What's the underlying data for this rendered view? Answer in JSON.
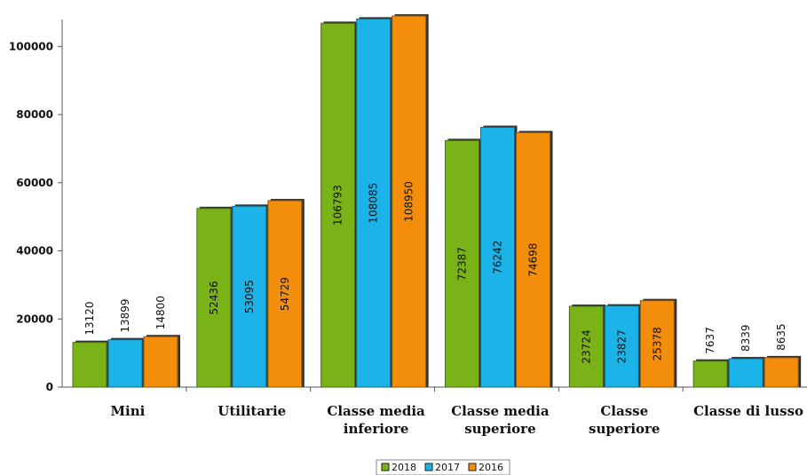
{
  "chart_data": {
    "type": "bar",
    "categories": [
      "Mini",
      "Utilitarie",
      "Classe media inferiore",
      "Classe media superiore",
      "Classe superiore",
      "Classe di lusso"
    ],
    "category_lines": [
      [
        "Mini"
      ],
      [
        "Utilitarie"
      ],
      [
        "Classe media",
        "inferiore"
      ],
      [
        "Classe media",
        "superiore"
      ],
      [
        "Classe",
        "superiore"
      ],
      [
        "Classe di lusso"
      ]
    ],
    "series": [
      {
        "name": "2018",
        "color": "#7ab317",
        "values": [
          13120,
          52436,
          106793,
          72387,
          23724,
          7637
        ]
      },
      {
        "name": "2017",
        "color": "#1cb3e8",
        "values": [
          13899,
          53095,
          108085,
          76242,
          23827,
          8339
        ]
      },
      {
        "name": "2016",
        "color": "#f28e0c",
        "values": [
          14800,
          54729,
          108950,
          74698,
          25378,
          8635
        ]
      }
    ],
    "ylim": [
      0,
      110000
    ],
    "yticks": [
      0,
      20000,
      40000,
      60000,
      80000,
      100000
    ],
    "legend_position": "bottom-center",
    "grid": false
  }
}
